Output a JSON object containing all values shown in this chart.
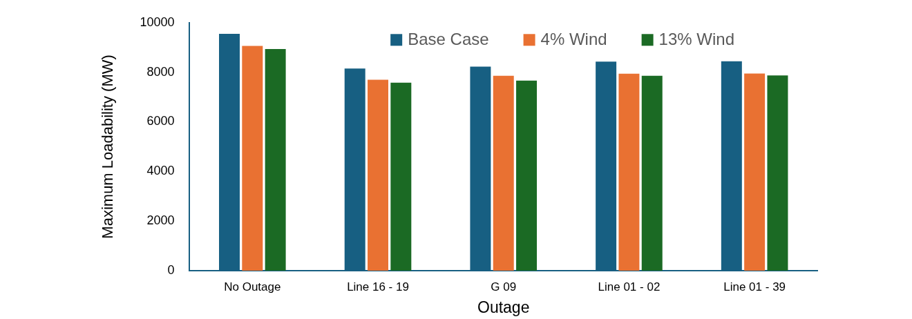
{
  "chart_data": {
    "type": "bar",
    "xlabel": "Outage",
    "ylabel": "Maximum Loadability (MW)",
    "categories": [
      "No Outage",
      "Line 16 - 19",
      "G 09",
      "Line 01 - 02",
      "Line 01 - 39"
    ],
    "series": [
      {
        "name": "Base Case",
        "color": "#175f82",
        "values": [
          9550,
          8150,
          8230,
          8430,
          8440
        ]
      },
      {
        "name": "4% Wind",
        "color": "#e97132",
        "values": [
          9060,
          7700,
          7860,
          7940,
          7945
        ]
      },
      {
        "name": "13% Wind",
        "color": "#1b6a24",
        "values": [
          8940,
          7580,
          7660,
          7860,
          7870
        ]
      }
    ],
    "ylim": [
      0,
      10000
    ],
    "yticks": [
      0,
      2000,
      4000,
      6000,
      8000,
      10000
    ],
    "grid": false,
    "legend": "top right"
  }
}
